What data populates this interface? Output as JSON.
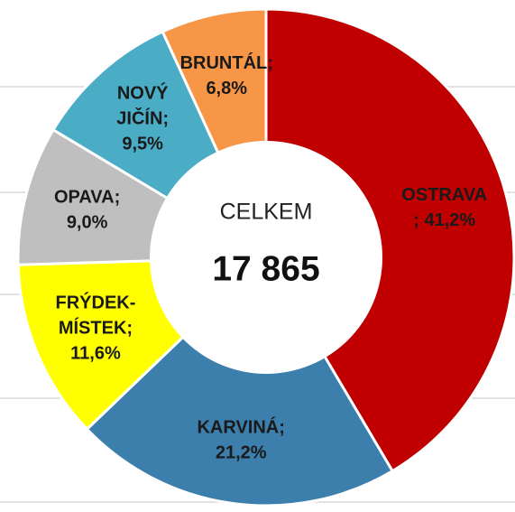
{
  "chart_data": {
    "type": "donut",
    "values": [
      41.2,
      21.2,
      11.6,
      9.0,
      9.5,
      6.8
    ],
    "value_labels": [
      [
        "OSTRAVA",
        "; 41,2%"
      ],
      [
        "KARVINÁ;",
        "21,2%"
      ],
      [
        "FRÝDEK-",
        "MÍSTEK;",
        "11,6%"
      ],
      [
        "OPAVA;",
        "9,0%"
      ],
      [
        "NOVÝ",
        "JIČÍN;",
        "9,5%"
      ],
      [
        "BRUNTÁL;",
        "6,8%"
      ]
    ],
    "colors": [
      "#c00000",
      "#3c7fad",
      "#ffff00",
      "#bfbfbf",
      "#4bacc6",
      "#f79646"
    ],
    "center_label": "CELKEM",
    "center_value": "17 865"
  }
}
